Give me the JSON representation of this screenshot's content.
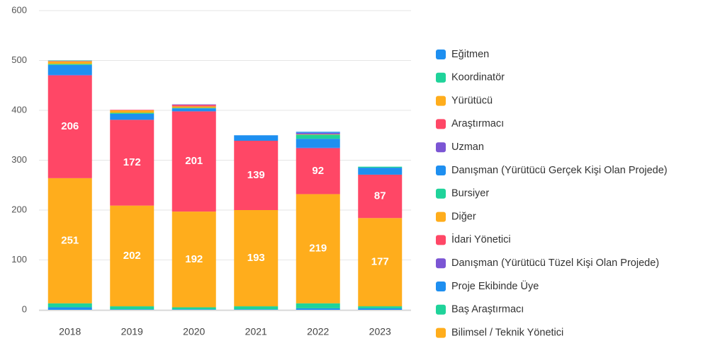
{
  "chart_data": {
    "type": "stacked_bar",
    "categories": [
      "2018",
      "2019",
      "2020",
      "2021",
      "2022",
      "2023"
    ],
    "ylim": [
      0,
      600
    ],
    "yticks": [
      0,
      100,
      200,
      300,
      400,
      500,
      600
    ],
    "grid": true,
    "legend": "right",
    "series": [
      {
        "name": "Eğitmen",
        "color": "#1e8ff0",
        "values": [
          5,
          1,
          1,
          1,
          3,
          3
        ]
      },
      {
        "name": "Koordinatör",
        "color": "#1fd39a",
        "values": [
          8,
          6,
          4,
          6,
          10,
          4
        ]
      },
      {
        "name": "Yürütücü",
        "color": "#ffad1c",
        "values": [
          251,
          202,
          192,
          193,
          219,
          177
        ]
      },
      {
        "name": "Araştırmacı",
        "color": "#ff4766",
        "values": [
          206,
          172,
          201,
          139,
          92,
          87
        ]
      },
      {
        "name": "Uzman",
        "color": "#7b55d4",
        "values": [
          1,
          0,
          0,
          0,
          1,
          0
        ]
      },
      {
        "name": "Danışman (Yürütücü Gerçek Kişi Olan Projede)",
        "color": "#1e8ff0",
        "values": [
          20,
          12,
          6,
          11,
          18,
          14
        ]
      },
      {
        "name": "Bursiyer",
        "color": "#1fd39a",
        "values": [
          2,
          2,
          1,
          0,
          8,
          2
        ]
      },
      {
        "name": "Diğer",
        "color": "#ffad1c",
        "values": [
          5,
          5,
          3,
          0,
          1,
          0
        ]
      },
      {
        "name": "İdari Yönetici",
        "color": "#ff4766",
        "values": [
          1,
          1,
          3,
          0,
          0,
          0
        ]
      },
      {
        "name": "Danışman (Yürütücü Tüzel Kişi Olan Projede)",
        "color": "#7b55d4",
        "values": [
          0,
          0,
          1,
          0,
          3,
          0
        ]
      },
      {
        "name": "Proje Ekibinde Üye",
        "color": "#1e8ff0",
        "values": [
          0,
          0,
          0,
          0,
          2,
          0
        ]
      },
      {
        "name": "Baş Araştırmacı",
        "color": "#1fd39a",
        "values": [
          1,
          0,
          0,
          0,
          0,
          0
        ]
      },
      {
        "name": "Bilimsel / Teknik Yönetici",
        "color": "#ffad1c",
        "values": [
          0,
          0,
          0,
          0,
          0,
          0
        ]
      }
    ]
  }
}
